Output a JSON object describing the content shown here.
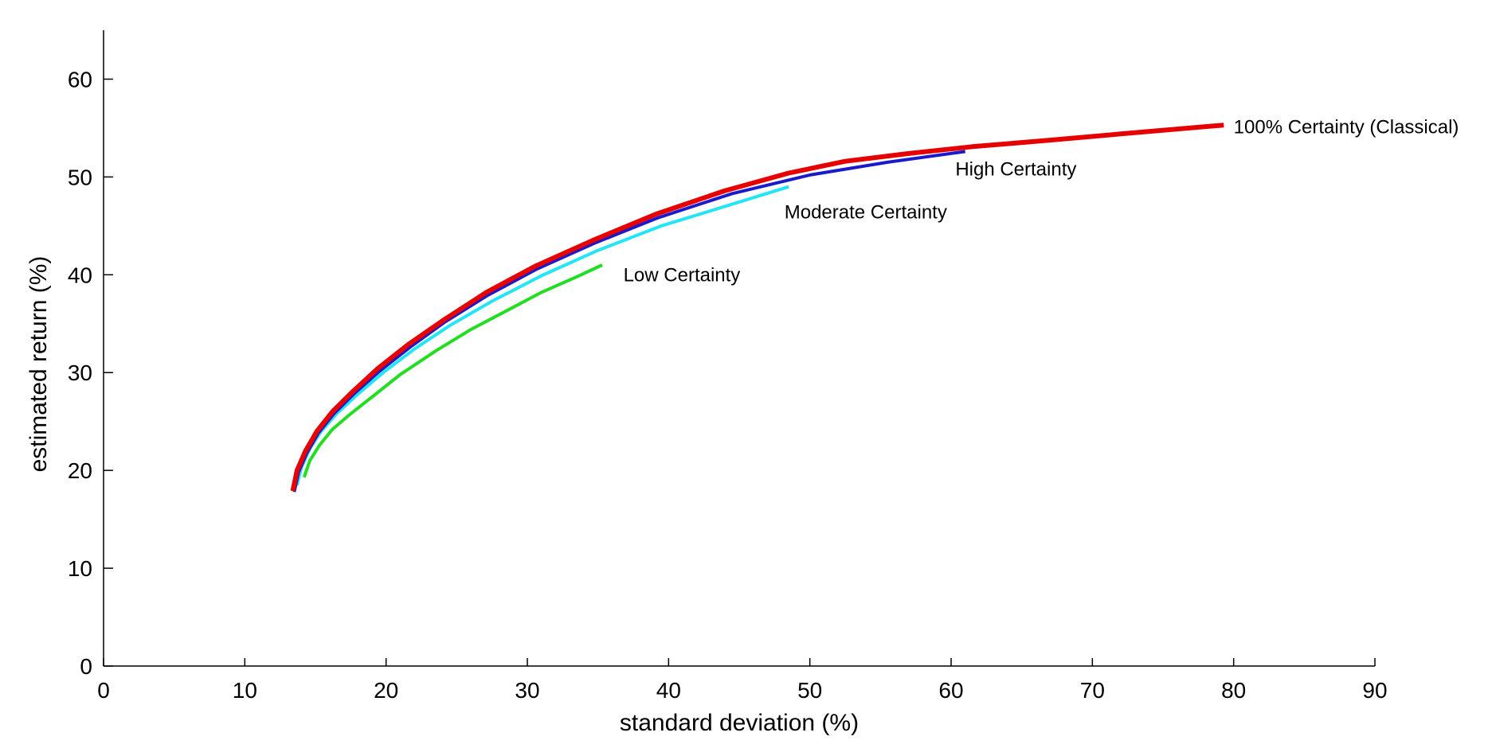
{
  "chart_data": {
    "type": "line",
    "title": "",
    "xlabel": "standard deviation (%)",
    "ylabel": "estimated return (%)",
    "xlim": [
      0,
      90
    ],
    "ylim": [
      0,
      65
    ],
    "xticks": [
      0,
      10,
      20,
      30,
      40,
      50,
      60,
      70,
      80,
      90
    ],
    "yticks": [
      0,
      10,
      20,
      30,
      40,
      50,
      60
    ],
    "grid": false,
    "legend": "none",
    "series": [
      {
        "name": "Low Certainty",
        "color": "#22dd22",
        "x": [
          14.2,
          14.6,
          15.3,
          16.2,
          17.5,
          19.0,
          21.0,
          23.5,
          26.0,
          28.5,
          31.0,
          33.5,
          35.3
        ],
        "y": [
          19.3,
          21.0,
          22.6,
          24.2,
          25.8,
          27.5,
          29.8,
          32.2,
          34.4,
          36.3,
          38.2,
          39.8,
          41.0
        ]
      },
      {
        "name": "Moderate Certainty",
        "color": "#22e5f5",
        "x": [
          13.7,
          14.0,
          14.6,
          15.4,
          16.5,
          18.0,
          19.8,
          22.0,
          24.5,
          27.5,
          31.0,
          35.0,
          39.5,
          44.0,
          48.5
        ],
        "y": [
          18.5,
          20.3,
          22.2,
          24.0,
          25.8,
          27.8,
          30.0,
          32.4,
          34.8,
          37.3,
          39.9,
          42.5,
          45.0,
          47.0,
          49.0
        ]
      },
      {
        "name": "High Certainty",
        "color": "#1a1acc",
        "x": [
          13.5,
          13.8,
          14.4,
          15.2,
          16.3,
          17.7,
          19.5,
          21.7,
          24.2,
          27.2,
          30.7,
          34.7,
          39.2,
          44.5,
          50.0,
          55.5,
          61.0
        ],
        "y": [
          17.8,
          19.8,
          21.8,
          23.8,
          25.8,
          27.8,
          30.1,
          32.6,
          35.2,
          37.9,
          40.6,
          43.2,
          45.8,
          48.3,
          50.2,
          51.5,
          52.6
        ]
      },
      {
        "name": "100% Certainty (Classical)",
        "color": "#e60000",
        "x": [
          13.4,
          13.7,
          14.3,
          15.1,
          16.2,
          17.6,
          19.4,
          21.6,
          24.1,
          27.1,
          30.6,
          34.6,
          39.1,
          44.0,
          48.5,
          52.5,
          57.0,
          61.5,
          66.5,
          72.0,
          79.3
        ],
        "y": [
          17.9,
          20.0,
          22.0,
          24.0,
          26.0,
          28.0,
          30.4,
          32.9,
          35.4,
          38.2,
          40.9,
          43.5,
          46.2,
          48.6,
          50.4,
          51.6,
          52.4,
          53.1,
          53.7,
          54.4,
          55.3
        ]
      }
    ],
    "annotations": [
      {
        "text": "Low Certainty",
        "x": 36.8,
        "y": 40.0
      },
      {
        "text": "Moderate Certainty",
        "x": 48.2,
        "y": 46.4
      },
      {
        "text": "High Certainty",
        "x": 60.3,
        "y": 50.8
      },
      {
        "text": "100% Certainty (Classical)",
        "x": 80.0,
        "y": 55.1
      }
    ]
  }
}
